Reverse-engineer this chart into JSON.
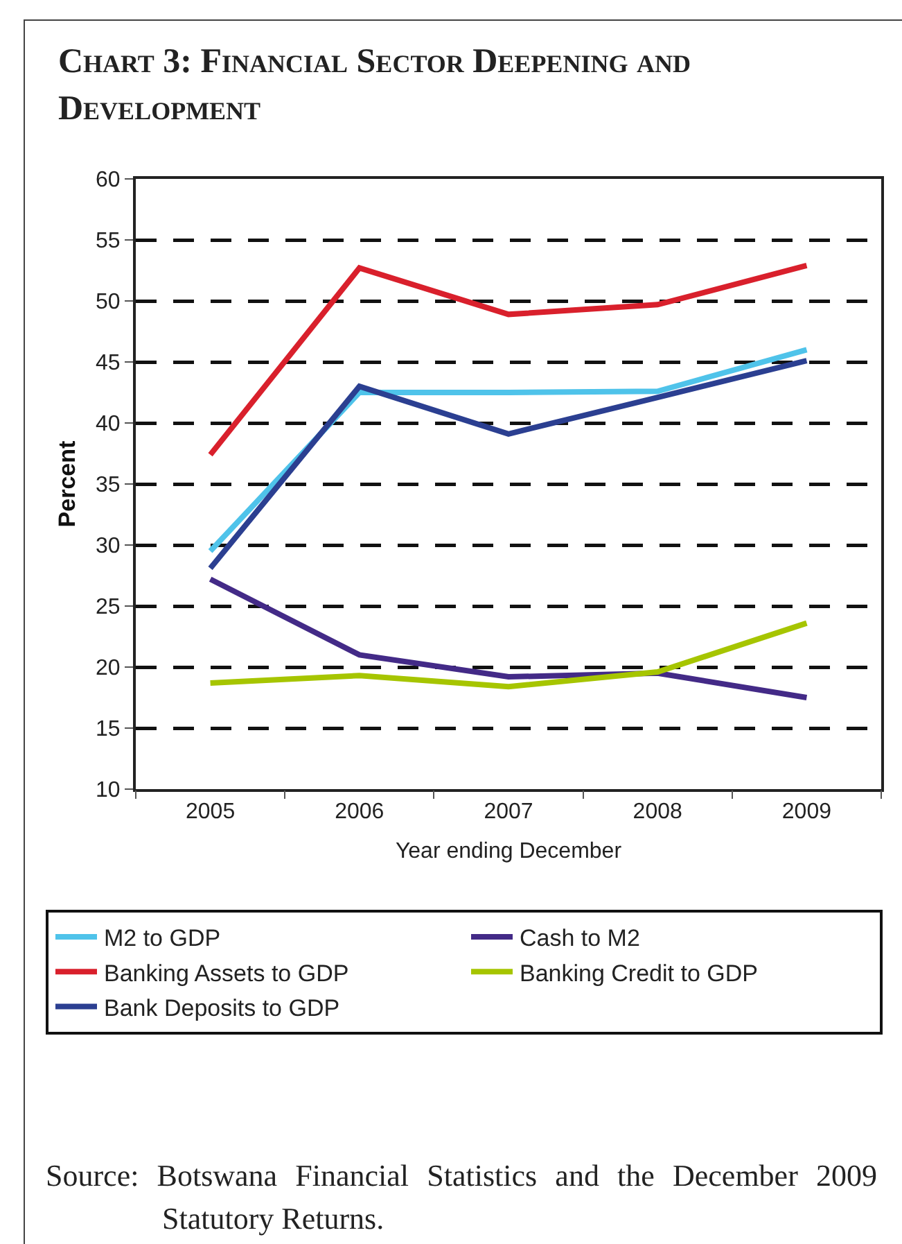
{
  "chart_data": {
    "type": "line",
    "title": "Chart 3: Financial Sector Deepening and Development",
    "xlabel": "Year ending December",
    "ylabel": "Percent",
    "categories": [
      "2005",
      "2006",
      "2007",
      "2008",
      "2009"
    ],
    "series": [
      {
        "name": "M2 to GDP",
        "color": "#4fc3ea",
        "values": [
          29.5,
          42.5,
          42.5,
          42.6,
          46.0
        ]
      },
      {
        "name": "Cash to M2",
        "color": "#432a87",
        "values": [
          27.2,
          21.0,
          19.2,
          19.5,
          17.5
        ]
      },
      {
        "name": "Banking Assets to GDP",
        "color": "#d9202c",
        "values": [
          37.4,
          52.7,
          48.9,
          49.7,
          52.9
        ]
      },
      {
        "name": "Banking Credit to GDP",
        "color": "#a6c500",
        "values": [
          18.7,
          19.3,
          18.4,
          19.6,
          23.6
        ]
      },
      {
        "name": "Bank Deposits to GDP",
        "color": "#2b3f91",
        "values": [
          28.1,
          43.0,
          39.1,
          42.1,
          45.1
        ]
      }
    ],
    "ylim": [
      10,
      60
    ],
    "yticks": [
      10,
      15,
      20,
      25,
      30,
      35,
      40,
      45,
      50,
      55,
      60
    ],
    "grid": "y",
    "legend": "bottom",
    "annotations": [
      "Source: Botswana Financial Statistics and the December 2009 Statutory Returns."
    ]
  }
}
